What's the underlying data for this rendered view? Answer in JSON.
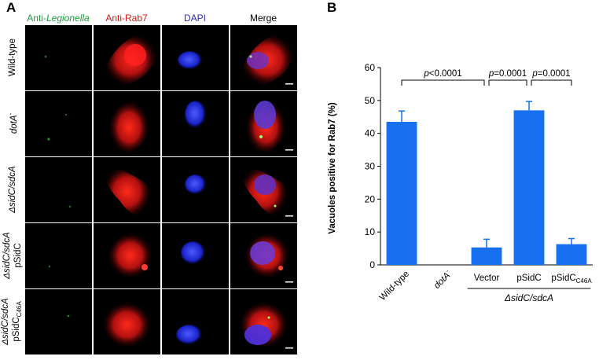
{
  "panel_a": {
    "letter": "A",
    "columns": [
      {
        "prefix": "Anti-",
        "italic": "Legionella",
        "color": "#1a9e3a"
      },
      {
        "prefix": "Anti-Rab7",
        "italic": "",
        "color": "#d11a1a"
      },
      {
        "prefix": "DAPI",
        "italic": "",
        "color": "#2a2ab8"
      },
      {
        "prefix": "Merge",
        "italic": "",
        "color": "#000000"
      }
    ],
    "rows": [
      {
        "line1": "Wild-type",
        "line2": "",
        "sub": ""
      },
      {
        "line1": "dotA",
        "sup": "-",
        "line2": "",
        "sub": ""
      },
      {
        "line1": "ΔsidC/sdcA",
        "line2": "",
        "sub": ""
      },
      {
        "line1": "ΔsidC/sdcA",
        "line2": "pSidC",
        "sub": ""
      },
      {
        "line1": "ΔsidC/sdcA",
        "line2": "pSidC",
        "sub": "C46A"
      }
    ]
  },
  "panel_b": {
    "letter": "B"
  },
  "chart_data": {
    "type": "bar",
    "ylabel": "Vacuoles positive for Rab7 (%)",
    "ylim": [
      0,
      60
    ],
    "yticks": [
      0,
      10,
      20,
      30,
      40,
      50,
      60
    ],
    "categories": [
      "Wild-type",
      "dotA-",
      "Vector",
      "pSidC",
      "pSidCC46A"
    ],
    "category_labels": [
      {
        "text": "Wild-type",
        "sup": "",
        "sub": ""
      },
      {
        "text": "dotA",
        "sup": "-",
        "sub": ""
      },
      {
        "text": "Vector",
        "sup": "",
        "sub": ""
      },
      {
        "text": "pSidC",
        "sup": "",
        "sub": ""
      },
      {
        "text": "pSidC",
        "sup": "",
        "sub": "C46A"
      }
    ],
    "values": [
      43.5,
      0,
      5.3,
      47,
      6.3
    ],
    "errors": [
      3.3,
      0,
      2.5,
      2.7,
      1.7
    ],
    "bar_color": "#1670f0",
    "group_label": "ΔsidC/sdcA",
    "group_span": [
      2,
      4
    ],
    "comparisons": [
      {
        "from": 0,
        "to": 2,
        "p": "p",
        "rest": "<0.0001"
      },
      {
        "from": 2,
        "to": 3,
        "p": "p",
        "rest": "=0.0001"
      },
      {
        "from": 3,
        "to": 4,
        "p": "p",
        "rest": "=0.0001"
      }
    ]
  }
}
